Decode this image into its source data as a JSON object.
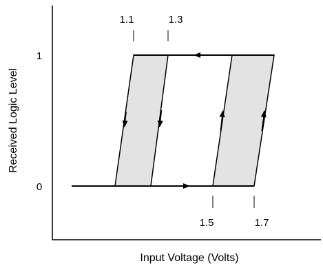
{
  "axes": {
    "ylabel": "Received Logic Level",
    "xlabel": "Input Voltage (Volts)",
    "y_ticks": [
      "1",
      "0"
    ]
  },
  "thresholds": {
    "upper": [
      "1.1",
      "1.3"
    ],
    "lower": [
      "1.5",
      "1.7"
    ]
  },
  "colors": {
    "band_fill": "#e3e3e3",
    "line": "#000000"
  }
}
